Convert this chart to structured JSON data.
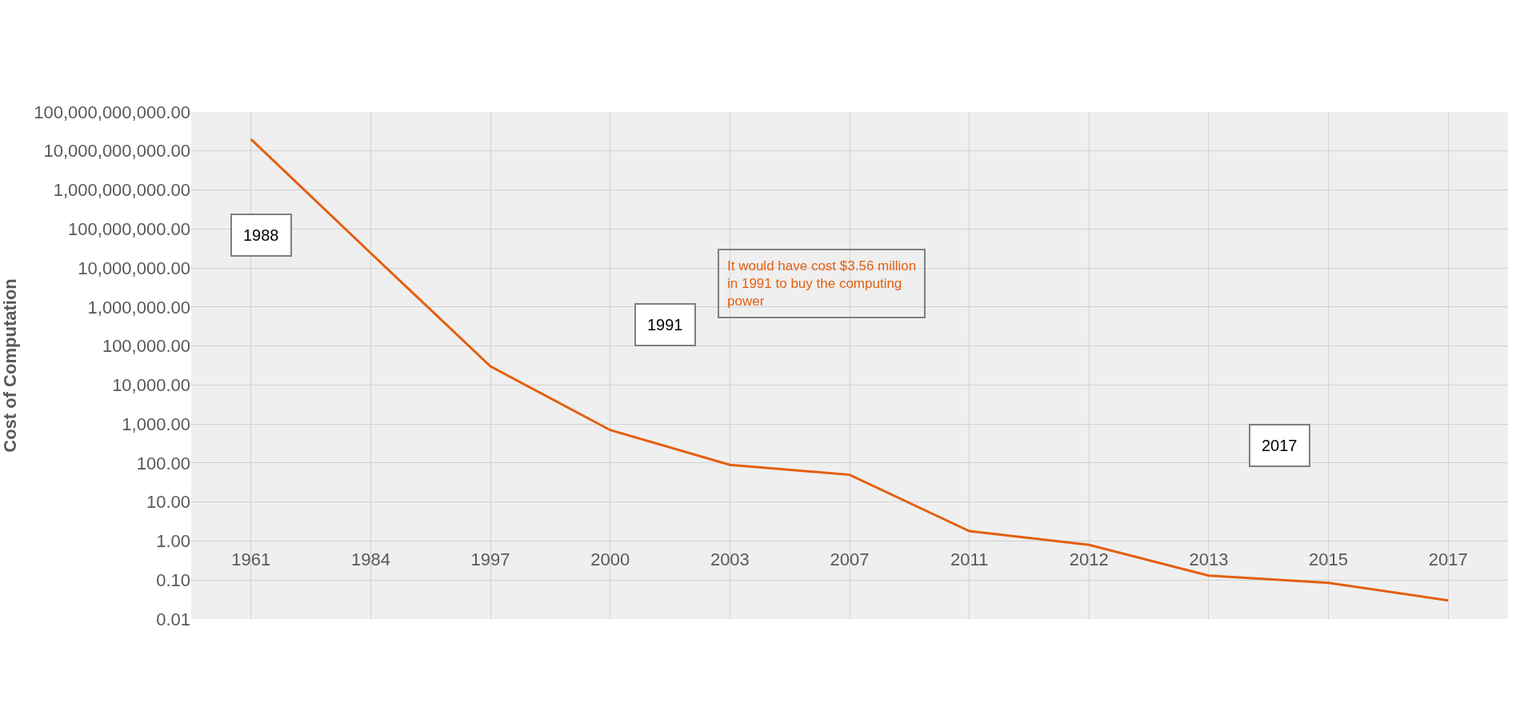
{
  "chart_data": {
    "type": "line",
    "ylabel": "Cost of Computation",
    "categories": [
      "1961",
      "1984",
      "1997",
      "2000",
      "2003",
      "2007",
      "2011",
      "2012",
      "2013",
      "2015",
      "2017"
    ],
    "series": [
      {
        "color": "#e35f0f",
        "values": [
          20000000000,
          24000000,
          30000,
          700,
          90,
          50,
          1.8,
          0.8,
          0.13,
          0.085,
          0.03
        ]
      }
    ],
    "log": "y",
    "ylim": [
      0.01,
      100000000000
    ],
    "yticks": [
      {
        "value": 0.01,
        "label": "0.01"
      },
      {
        "value": 0.1,
        "label": "0.10"
      },
      {
        "value": 1,
        "label": "1.00"
      },
      {
        "value": 10,
        "label": "10.00"
      },
      {
        "value": 100,
        "label": "100.00"
      },
      {
        "value": 1000,
        "label": "1,000.00"
      },
      {
        "value": 10000,
        "label": "10,000.00"
      },
      {
        "value": 100000,
        "label": "100,000.00"
      },
      {
        "value": 1000000,
        "label": "1,000,000.00"
      },
      {
        "value": 10000000,
        "label": "10,000,000.00"
      },
      {
        "value": 100000000,
        "label": "100,000,000.00"
      },
      {
        "value": 1000000000,
        "label": "1,000,000,000.00"
      },
      {
        "value": 10000000000,
        "label": "10,000,000,000.00"
      },
      {
        "value": 100000000000,
        "label": "100,000,000,000.00"
      }
    ],
    "annotations": [
      "1988",
      "1991",
      "It would have cost $3.56 million in 1991 to buy the computing power",
      "2017"
    ],
    "grid": true,
    "marker": "none",
    "line_style": "solid"
  }
}
